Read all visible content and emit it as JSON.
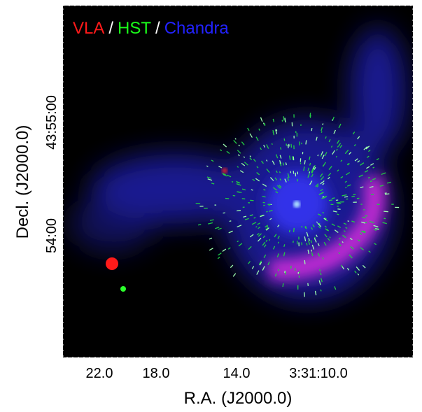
{
  "legend": {
    "items": [
      {
        "label": "VLA",
        "color": "#ff1a1a"
      },
      {
        "label": "/",
        "color": "#ffffff"
      },
      {
        "label": "HST",
        "color": "#1aff1a"
      },
      {
        "label": "/",
        "color": "#ffffff"
      },
      {
        "label": "Chandra",
        "color": "#2222ff"
      }
    ]
  },
  "x_axis": {
    "label": "R.A. (J2000.0)",
    "ticks": [
      "22.0",
      "18.0",
      "14.0",
      "3:31:10.0"
    ]
  },
  "y_axis": {
    "label": "Decl. (J2000.0)",
    "ticks": [
      "43:55:00",
      "54:00"
    ]
  }
}
